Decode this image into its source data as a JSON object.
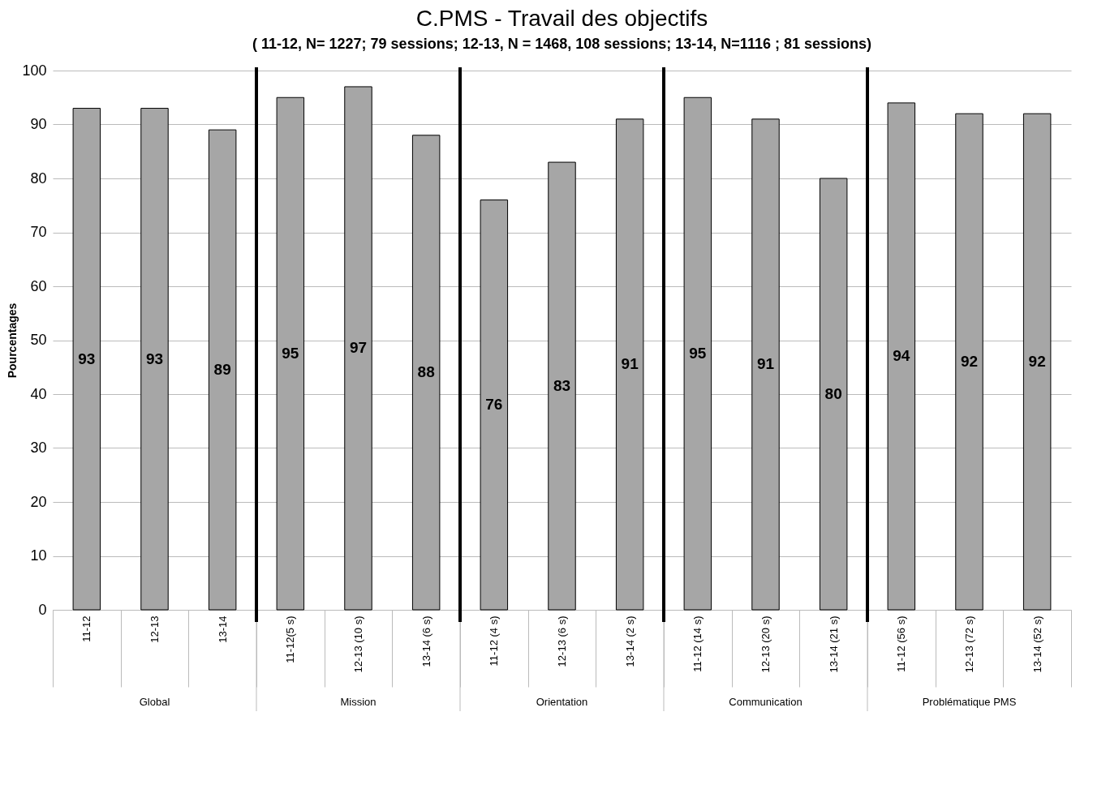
{
  "chart_data": {
    "type": "bar",
    "title": "C.PMS - Travail des objectifs",
    "subtitle": "( 11-12, N= 1227; 79 sessions; 12-13, N = 1468, 108 sessions; 13-14, N=1116 ; 81 sessions)",
    "ylabel": "Pourcentages",
    "categories": [
      "11-12",
      "12-13",
      "13-14",
      "11-12(5 s)",
      "12-13 (10 s)",
      "13-14 (6 s)",
      "11-12 (4 s)",
      "12-13  (6 s)",
      "13-14 (2 s)",
      "11-12 (14 s)",
      "12-13 (20 s)",
      "13-14 (21 s)",
      "11-12 (56 s)",
      "12-13 (72 s)",
      "13-14 (52 s)"
    ],
    "values": [
      93,
      93,
      89,
      95,
      97,
      88,
      76,
      83,
      91,
      95,
      91,
      80,
      94,
      92,
      92
    ],
    "color": "#a6a6a6",
    "ylim": [
      0,
      100
    ],
    "yticks": [
      0,
      10,
      20,
      30,
      40,
      50,
      60,
      70,
      80,
      90,
      100
    ],
    "grid": "y",
    "data_labels": true,
    "annotations": [
      "Global",
      "Mission",
      "Orientation",
      "Communication",
      "Problématique PMS"
    ]
  }
}
